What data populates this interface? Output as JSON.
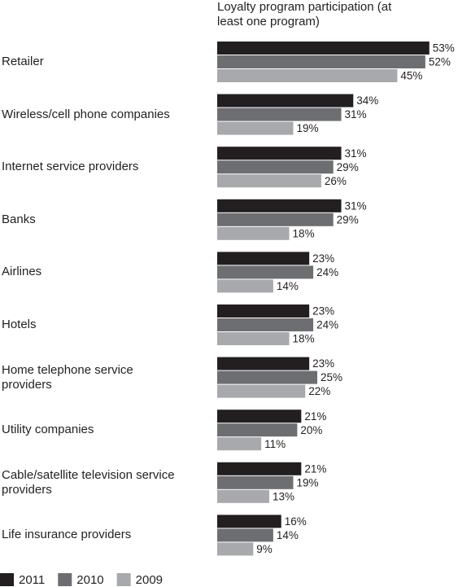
{
  "chart_data": {
    "type": "bar",
    "orientation": "horizontal",
    "title": "Loyalty program participation (at least one program)",
    "categories": [
      "Retailer",
      "Wireless/cell phone companies",
      "Internet service providers",
      "Banks",
      "Airlines",
      "Hotels",
      "Home telephone service providers",
      "Utility companies",
      "Cable/satellite television service providers",
      "Life insurance providers"
    ],
    "series": [
      {
        "name": "2011",
        "color": "#231f20",
        "values": [
          53,
          34,
          31,
          31,
          23,
          23,
          23,
          21,
          21,
          16
        ],
        "value_labels": [
          "53%",
          "34%",
          "31%",
          "31%",
          "23%",
          "23%",
          "23%",
          "21%",
          "21%",
          "16%"
        ]
      },
      {
        "name": "2010",
        "color": "#6d6e71",
        "values": [
          52,
          31,
          29,
          29,
          24,
          24,
          25,
          20,
          19,
          14
        ],
        "value_labels": [
          "52%",
          "31%",
          "29%",
          "29%",
          "24%",
          "24%",
          "25%",
          "20%",
          "19%",
          "14%"
        ]
      },
      {
        "name": "2009",
        "color": "#a7a9ac",
        "values": [
          45,
          19,
          26,
          18,
          14,
          18,
          22,
          11,
          13,
          9
        ],
        "value_labels": [
          "45%",
          "19%",
          "26%",
          "18%",
          "14%",
          "18%",
          "22%",
          "11%",
          "13%",
          "9%"
        ]
      }
    ],
    "legend": "bottom-left"
  }
}
